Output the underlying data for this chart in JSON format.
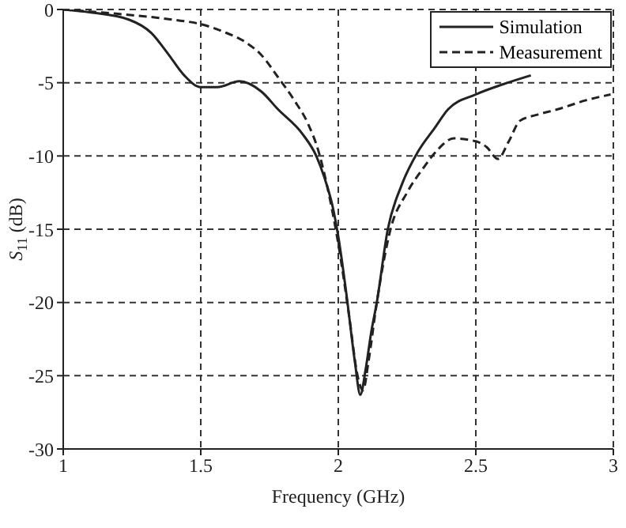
{
  "chart_data": {
    "type": "line",
    "xlabel": "Frequency (GHz)",
    "ylabel": "S$_{11}$ (dB)",
    "xlim": [
      1,
      3
    ],
    "ylim": [
      -30,
      0
    ],
    "xticks": [
      1,
      1.5,
      2,
      2.5,
      3
    ],
    "yticks": [
      -30,
      -25,
      -20,
      -15,
      -10,
      -5,
      0
    ],
    "grid": true,
    "legend": "top right",
    "marker": "none",
    "series": [
      {
        "name": "Simulation",
        "color": "#222222",
        "line_style": "solid",
        "x": [
          1,
          1.1,
          1.24,
          1.32,
          1.38,
          1.44,
          1.5,
          1.56,
          1.64,
          1.72,
          1.78,
          1.87,
          1.92,
          1.95,
          1.98,
          2.0,
          2.03,
          2.06,
          2.08,
          2.1,
          2.12,
          2.14,
          2.18,
          2.23,
          2.29,
          2.35,
          2.4,
          2.5,
          2.6,
          2.7
        ],
        "values": [
          0,
          -0.2,
          -0.7,
          -1.6,
          -3.0,
          -4.5,
          -5.3,
          -5.3,
          -4.9,
          -5.6,
          -6.8,
          -8.5,
          -10.0,
          -11.5,
          -13.5,
          -15.5,
          -19.5,
          -24,
          -26.3,
          -24.5,
          -22,
          -20,
          -15,
          -12,
          -9.7,
          -8.1,
          -6.8,
          -5.8,
          -5.1,
          -4.5
        ]
      },
      {
        "name": "Measurement",
        "color": "#222222",
        "line_style": "dashed",
        "x": [
          1,
          1.2,
          1.4,
          1.5,
          1.58,
          1.66,
          1.72,
          1.78,
          1.84,
          1.89,
          1.93,
          1.96,
          2.0,
          2.04,
          2.07,
          2.09,
          2.11,
          2.14,
          2.19,
          2.25,
          2.31,
          2.36,
          2.42,
          2.5,
          2.54,
          2.58,
          2.62,
          2.66,
          2.72,
          2.8,
          2.9,
          2.99
        ],
        "values": [
          0,
          -0.3,
          -0.7,
          -1.0,
          -1.5,
          -2.2,
          -3.1,
          -4.6,
          -6.2,
          -7.8,
          -9.8,
          -12.1,
          -16,
          -21,
          -25,
          -26,
          -24,
          -20,
          -15,
          -12.5,
          -10.8,
          -9.6,
          -8.8,
          -9.0,
          -9.4,
          -10.2,
          -9.0,
          -7.6,
          -7.2,
          -6.8,
          -6.2,
          -5.8
        ]
      }
    ]
  }
}
